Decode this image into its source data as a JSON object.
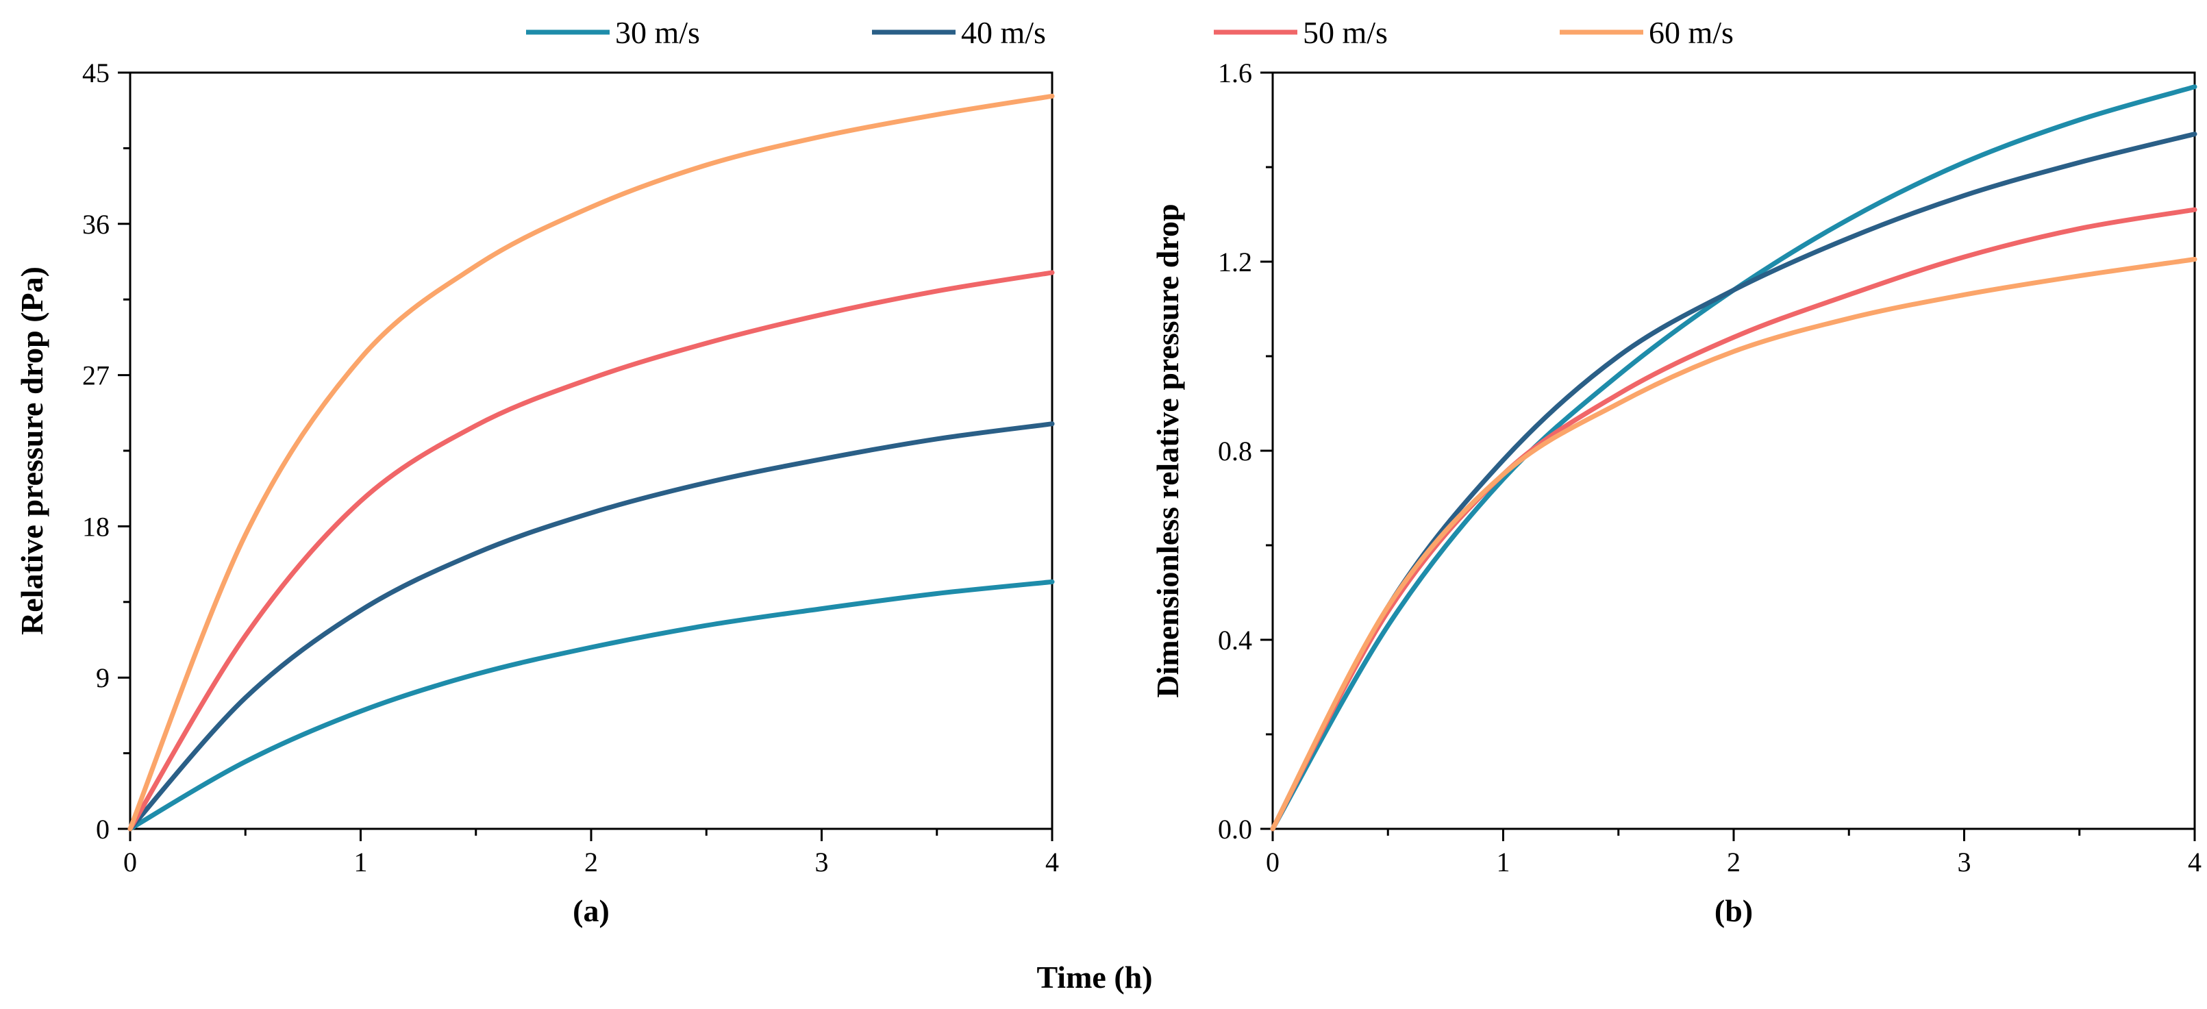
{
  "chart_data": {
    "type": "line",
    "shared_xlabel": "Time (h)",
    "legend": {
      "placement": "top-center",
      "entries": [
        {
          "name": "30 m/s",
          "color": "#1e8caa"
        },
        {
          "name": "40 m/s",
          "color": "#2a5f87"
        },
        {
          "name": "50 m/s",
          "color": "#f06668"
        },
        {
          "name": "60 m/s",
          "color": "#fba56a"
        }
      ]
    },
    "panels": [
      {
        "label": "(a)",
        "ylabel": "Relative pressure drop (Pa)",
        "xlim": [
          0,
          4
        ],
        "ylim": [
          0,
          45
        ],
        "xticks": [
          "0",
          "1",
          "2",
          "3",
          "4"
        ],
        "yticks": [
          "0",
          "9",
          "18",
          "27",
          "36",
          "45"
        ],
        "grid": false,
        "x": [
          0,
          0.5,
          1,
          1.5,
          2,
          2.5,
          3,
          3.5,
          4
        ],
        "series": [
          {
            "name": "30 m/s",
            "color": "#1e8caa",
            "values": [
              0,
              4.0,
              7.0,
              9.2,
              10.8,
              12.1,
              13.1,
              14.0,
              14.7
            ]
          },
          {
            "name": "40 m/s",
            "color": "#2a5f87",
            "values": [
              0,
              7.8,
              13.0,
              16.4,
              18.8,
              20.6,
              22.0,
              23.2,
              24.1
            ]
          },
          {
            "name": "50 m/s",
            "color": "#f06668",
            "values": [
              0,
              11.5,
              19.5,
              24.0,
              26.8,
              28.9,
              30.6,
              32.0,
              33.1
            ]
          },
          {
            "name": "60 m/s",
            "color": "#fba56a",
            "values": [
              0,
              17.5,
              28.0,
              33.5,
              37.0,
              39.5,
              41.2,
              42.5,
              43.6
            ]
          }
        ]
      },
      {
        "label": "(b)",
        "ylabel": "Dimensionless relative pressure drop",
        "xlim": [
          0,
          4
        ],
        "ylim": [
          0,
          1.6
        ],
        "xticks": [
          "0",
          "1",
          "2",
          "3",
          "4"
        ],
        "yticks": [
          "0.0",
          "0.4",
          "0.8",
          "1.2",
          "1.6"
        ],
        "grid": false,
        "x": [
          0,
          0.5,
          1,
          1.5,
          2,
          2.5,
          3,
          3.5,
          4
        ],
        "series": [
          {
            "name": "30 m/s",
            "color": "#1e8caa",
            "values": [
              0,
              0.43,
              0.74,
              0.96,
              1.14,
              1.29,
              1.41,
              1.5,
              1.57
            ]
          },
          {
            "name": "40 m/s",
            "color": "#2a5f87",
            "values": [
              0,
              0.47,
              0.78,
              1.0,
              1.14,
              1.25,
              1.34,
              1.41,
              1.47
            ]
          },
          {
            "name": "50 m/s",
            "color": "#f06668",
            "values": [
              0,
              0.46,
              0.75,
              0.92,
              1.04,
              1.13,
              1.21,
              1.27,
              1.31
            ]
          },
          {
            "name": "60 m/s",
            "color": "#fba56a",
            "values": [
              0,
              0.47,
              0.75,
              0.9,
              1.01,
              1.08,
              1.13,
              1.17,
              1.205
            ]
          }
        ]
      }
    ]
  }
}
